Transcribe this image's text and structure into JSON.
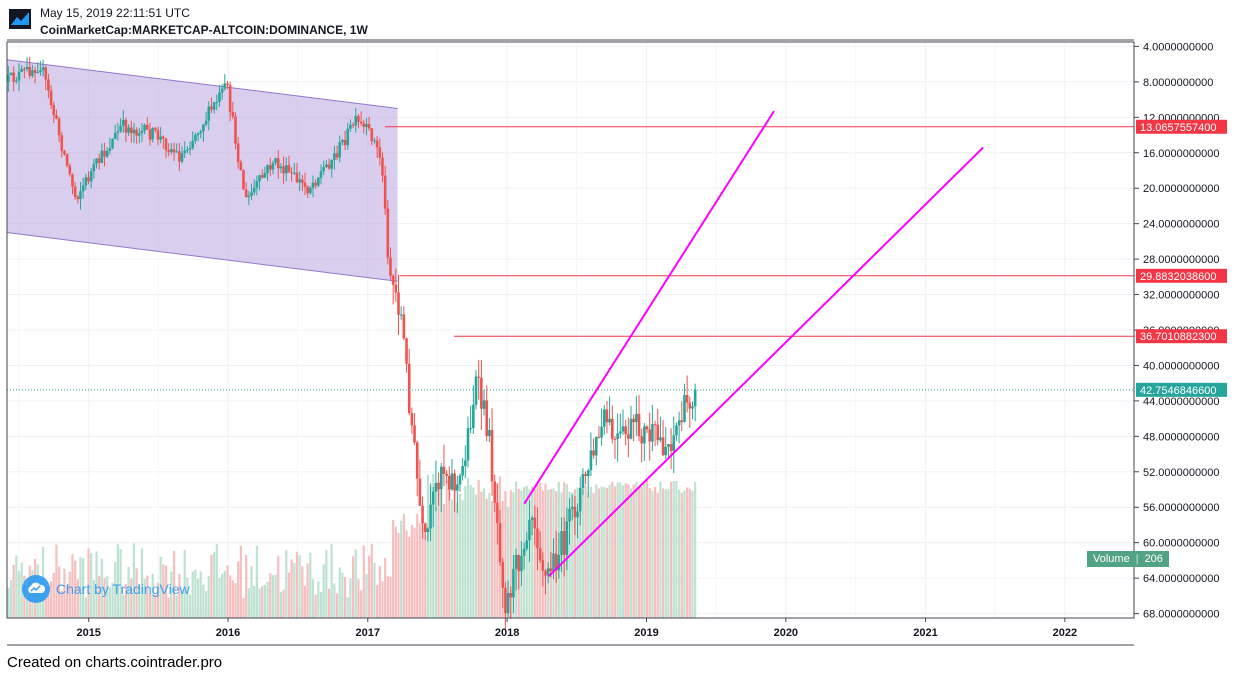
{
  "header": {
    "timestamp": "May 15, 2019 22:11:51 UTC",
    "symbol": "CoinMarketCap:MARKETCAP-ALTCOIN:DOMINANCE, 1W"
  },
  "footer": {
    "text": "Created on charts.cointrader.pro"
  },
  "watermark": {
    "text": "Chart by TradingView"
  },
  "volume_badge": {
    "label": "Volume",
    "value": "206"
  },
  "colors": {
    "up": "#26a69a",
    "down": "#ef5350",
    "channel_fill": "#b39ddb",
    "channel_line": "#9575cd",
    "trend_line": "#ff00ff",
    "level_line": "#f23645",
    "current_price": "#26a69a"
  },
  "chart_data": {
    "type": "candlestick",
    "title": "",
    "yscale": "inverted",
    "ylim": [
      3.5,
      68.5
    ],
    "xlim": [
      "2014-06-01",
      "2022-07-01"
    ],
    "x_ticks": [
      "2015",
      "2016",
      "2017",
      "2018",
      "2019",
      "2020",
      "2021",
      "2022"
    ],
    "y_ticks": [
      "4.0000000000",
      "8.0000000000",
      "12.0000000000",
      "16.0000000000",
      "20.0000000000",
      "24.0000000000",
      "28.0000000000",
      "32.0000000000",
      "36.0000000000",
      "40.0000000000",
      "44.0000000000",
      "48.0000000000",
      "52.0000000000",
      "56.0000000000",
      "60.0000000000",
      "64.0000000000",
      "68.0000000000"
    ],
    "price_path": [
      {
        "date": "2014-06-01",
        "value": 8.0
      },
      {
        "date": "2014-09-01",
        "value": 6.0
      },
      {
        "date": "2014-12-01",
        "value": 21.0
      },
      {
        "date": "2015-04-01",
        "value": 13.0
      },
      {
        "date": "2015-07-01",
        "value": 14.0
      },
      {
        "date": "2015-09-01",
        "value": 16.5
      },
      {
        "date": "2016-01-01",
        "value": 8.5
      },
      {
        "date": "2016-02-20",
        "value": 21.5
      },
      {
        "date": "2016-05-01",
        "value": 17.0
      },
      {
        "date": "2016-08-01",
        "value": 20.0
      },
      {
        "date": "2016-10-15",
        "value": 16.0
      },
      {
        "date": "2016-12-01",
        "value": 12.5
      },
      {
        "date": "2017-01-15",
        "value": 14.0
      },
      {
        "date": "2017-02-10",
        "value": 17.0
      },
      {
        "date": "2017-03-01",
        "value": 29.0
      },
      {
        "date": "2017-04-01",
        "value": 34.0
      },
      {
        "date": "2017-06-01",
        "value": 61.0
      },
      {
        "date": "2017-07-15",
        "value": 51.0
      },
      {
        "date": "2017-09-01",
        "value": 54.0
      },
      {
        "date": "2017-10-15",
        "value": 42.0
      },
      {
        "date": "2017-11-15",
        "value": 47.0
      },
      {
        "date": "2018-01-01",
        "value": 67.0
      },
      {
        "date": "2018-02-15",
        "value": 60.0
      },
      {
        "date": "2018-03-10",
        "value": 55.5
      },
      {
        "date": "2018-04-15",
        "value": 64.0
      },
      {
        "date": "2018-06-01",
        "value": 60.0
      },
      {
        "date": "2018-08-01",
        "value": 52.0
      },
      {
        "date": "2018-09-20",
        "value": 46.0
      },
      {
        "date": "2018-10-15",
        "value": 49.0
      },
      {
        "date": "2018-12-01",
        "value": 47.0
      },
      {
        "date": "2019-03-01",
        "value": 49.0
      },
      {
        "date": "2019-05-10",
        "value": 42.75
      }
    ],
    "horizontal_levels": [
      {
        "value": 13.06575574,
        "label": "13.0657557400",
        "from": "2017-02-15"
      },
      {
        "value": 29.88320386,
        "label": "29.8832038600",
        "from": "2017-03-25"
      },
      {
        "value": 36.70108823,
        "label": "36.7010882300",
        "from": "2017-08-15"
      }
    ],
    "current_price": {
      "value": 42.75468466,
      "label": "42.7546846600"
    },
    "volume_last": "206"
  }
}
